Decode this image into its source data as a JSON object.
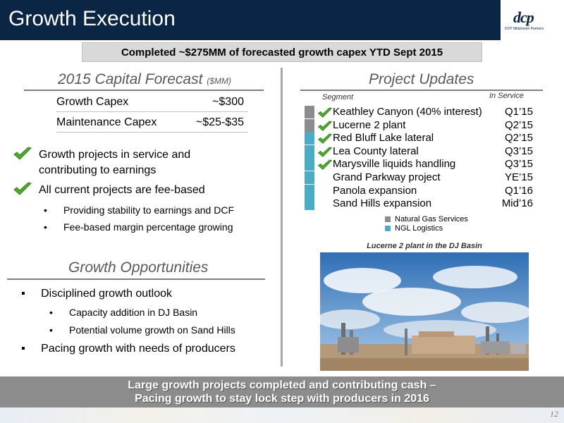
{
  "header": {
    "title": "Growth Execution",
    "logo_text": "dcp",
    "logo_sub": "DCP Midstream Partners"
  },
  "banner": "Completed ~$275MM of forecasted growth capex YTD Sept 2015",
  "forecast": {
    "title": "2015 Capital Forecast",
    "unit": "($MM)",
    "rows": [
      {
        "label": "Growth Capex",
        "value": "~$300"
      },
      {
        "label": "Maintenance Capex",
        "value": "~$25-$35"
      }
    ]
  },
  "checks": [
    {
      "line1": "Growth projects in service and",
      "line2": "contributing to earnings"
    },
    {
      "line1": "All current projects are fee-based",
      "line2": ""
    }
  ],
  "check_sub_bullets": [
    "Providing stability to earnings and DCF",
    "Fee-based margin percentage growing"
  ],
  "opportunities": {
    "title": "Growth Opportunities",
    "items": [
      {
        "text": "Disciplined growth outlook",
        "subs": [
          "Capacity addition in DJ Basin",
          "Potential volume growth on Sand Hills"
        ]
      },
      {
        "text": "Pacing growth with needs of producers",
        "subs": []
      }
    ]
  },
  "projects": {
    "title": "Project Updates",
    "segment_header": "Segment",
    "service_header": "In Service",
    "rows": [
      {
        "name": "Keathley Canyon (40% interest)",
        "date": "Q1’15",
        "segment": "gas",
        "done": true
      },
      {
        "name": "Lucerne 2 plant",
        "date": "Q2’15",
        "segment": "gas",
        "done": true
      },
      {
        "name": "Red Bluff Lake lateral",
        "date": "Q2’15",
        "segment": "ngl",
        "done": true
      },
      {
        "name": "Lea County lateral",
        "date": "Q3’15",
        "segment": "ngl",
        "done": true
      },
      {
        "name": "Marysville liquids handling",
        "date": "Q3’15",
        "segment": "ngl",
        "done": true
      },
      {
        "name": "Grand Parkway project",
        "date": "YE’15",
        "segment": "ngl",
        "done": false
      },
      {
        "name": "Panola expansion",
        "date": "Q1’16",
        "segment": "ngl",
        "done": false
      },
      {
        "name": "Sand Hills expansion",
        "date": "Mid’16",
        "segment": "ngl",
        "done": false
      }
    ],
    "legend": [
      {
        "label": "Natural Gas Services",
        "color": "#8c8c8c"
      },
      {
        "label": "NGL Logistics",
        "color": "#4bacc6"
      }
    ]
  },
  "photo_caption": "Lucerne 2 plant in the DJ Basin",
  "footer": {
    "line1": "Large growth projects completed and contributing cash –",
    "line2": "Pacing growth to stay lock step with producers in 2016"
  },
  "page_number": "12",
  "colors": {
    "header_bg": "#0b2545",
    "gas": "#8c8c8c",
    "ngl": "#4bacc6",
    "check": "#4caf2a"
  }
}
